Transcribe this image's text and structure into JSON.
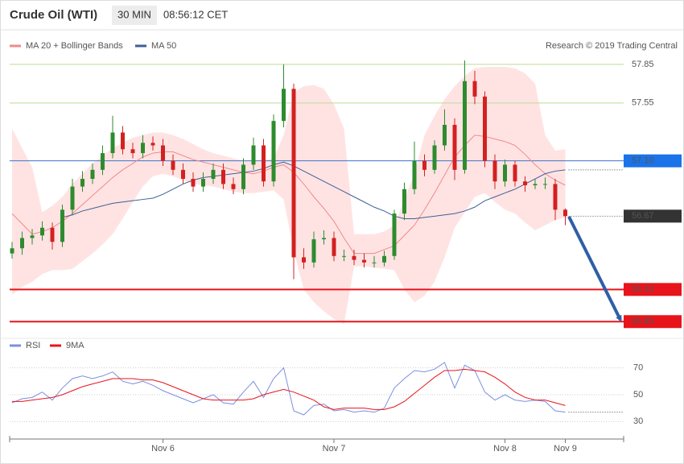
{
  "chart_data": [
    {
      "type": "candlestick",
      "title": "Crude Oil (WTI)",
      "interval": "30 MIN",
      "time": "08:56:12 CET",
      "source": "Research © 2019 Trading Central",
      "up_color": "#2e8b2e",
      "down_color": "#d42020",
      "ylim": [
        55.72,
        58.1
      ],
      "open": [
        56.38,
        56.42,
        56.5,
        56.52,
        56.58,
        56.47,
        56.72,
        56.9,
        56.96,
        57.03,
        57.16,
        57.32,
        57.19,
        57.16,
        57.24,
        57.22,
        57.1,
        57.03,
        56.96,
        56.9,
        56.96,
        57.03,
        56.92,
        56.88,
        57.07,
        57.22,
        56.94,
        57.41,
        57.66,
        56.35,
        56.31,
        56.49,
        56.5,
        56.36,
        56.36,
        56.33,
        56.31,
        56.31,
        56.36,
        56.69,
        56.88,
        57.1,
        57.03,
        57.22,
        57.38,
        57.03,
        57.72,
        57.6,
        57.1,
        56.94,
        57.07,
        56.94,
        56.91,
        56.92,
        56.92,
        56.72
      ],
      "high": [
        56.47,
        56.55,
        56.57,
        56.63,
        56.62,
        56.76,
        56.96,
        57.02,
        57.08,
        57.22,
        57.45,
        57.37,
        57.24,
        57.3,
        57.29,
        57.27,
        57.15,
        57.08,
        57.01,
        57.01,
        57.08,
        57.08,
        56.97,
        57.12,
        57.28,
        57.27,
        57.46,
        57.85,
        57.7,
        56.42,
        56.55,
        56.56,
        56.55,
        56.41,
        56.41,
        56.38,
        56.36,
        56.4,
        56.72,
        56.93,
        57.25,
        57.15,
        57.26,
        57.5,
        57.43,
        57.88,
        57.8,
        57.64,
        57.15,
        57.11,
        57.1,
        56.98,
        56.96,
        56.97,
        56.96,
        56.73
      ],
      "low": [
        56.34,
        56.37,
        56.45,
        56.48,
        56.41,
        56.43,
        56.68,
        56.86,
        56.92,
        56.99,
        57.12,
        57.15,
        57.12,
        57.12,
        57.18,
        57.06,
        56.99,
        56.92,
        56.86,
        56.86,
        56.92,
        56.88,
        56.84,
        56.84,
        57.03,
        56.9,
        56.9,
        57.36,
        56.18,
        56.26,
        56.27,
        56.45,
        56.32,
        56.32,
        56.29,
        56.27,
        56.27,
        56.28,
        56.33,
        56.64,
        56.84,
        56.98,
        57.0,
        57.18,
        56.95,
        57.0,
        57.54,
        57.05,
        56.88,
        56.9,
        56.9,
        56.86,
        56.88,
        56.88,
        56.64,
        56.6
      ],
      "close": [
        56.42,
        56.5,
        56.52,
        56.58,
        56.47,
        56.72,
        56.9,
        56.96,
        57.03,
        57.16,
        57.32,
        57.19,
        57.16,
        57.24,
        57.22,
        57.1,
        57.03,
        56.96,
        56.9,
        56.96,
        57.03,
        56.92,
        56.88,
        57.07,
        57.22,
        56.94,
        57.41,
        57.66,
        56.35,
        56.31,
        56.49,
        56.5,
        56.36,
        56.36,
        56.33,
        56.31,
        56.31,
        56.36,
        56.69,
        56.88,
        57.1,
        57.03,
        57.22,
        57.38,
        57.03,
        57.72,
        57.6,
        57.1,
        56.94,
        57.07,
        56.94,
        56.91,
        56.92,
        56.92,
        56.72,
        56.67
      ],
      "series": [
        {
          "name": "MA 20 + Bollinger Bands",
          "color": "#f08a8a",
          "band_color": "#ffe3e3",
          "values": [
            56.69,
            56.61,
            56.53,
            56.55,
            56.58,
            56.63,
            56.69,
            56.76,
            56.83,
            56.9,
            56.97,
            57.03,
            57.08,
            57.13,
            57.16,
            57.17,
            57.17,
            57.14,
            57.11,
            57.09,
            57.07,
            57.05,
            57.03,
            57.01,
            57.0,
            57.02,
            57.05,
            57.07,
            57.01,
            56.92,
            56.82,
            56.73,
            56.63,
            56.5,
            56.38,
            56.38,
            56.38,
            56.41,
            56.44,
            56.52,
            56.6,
            56.72,
            56.85,
            56.99,
            57.13,
            57.22,
            57.3,
            57.29,
            57.27,
            57.25,
            57.22,
            57.15,
            57.07,
            57.0,
            56.95,
            56.91
          ],
          "upper": [
            57.35,
            57.2,
            57.05,
            56.7,
            56.75,
            56.82,
            56.92,
            57.0,
            57.08,
            57.14,
            57.2,
            57.24,
            57.28,
            57.3,
            57.32,
            57.32,
            57.3,
            57.27,
            57.23,
            57.19,
            57.16,
            57.14,
            57.12,
            57.1,
            57.1,
            57.1,
            57.12,
            57.3,
            57.63,
            57.68,
            57.69,
            57.66,
            57.54,
            57.35,
            56.53,
            56.53,
            56.53,
            56.55,
            56.6,
            56.8,
            57.0,
            57.3,
            57.45,
            57.58,
            57.68,
            57.76,
            57.82,
            57.83,
            57.83,
            57.83,
            57.82,
            57.78,
            57.7,
            57.3,
            57.18,
            57.19
          ],
          "lower": [
            56.06,
            56.12,
            56.16,
            56.22,
            56.25,
            56.25,
            56.26,
            56.32,
            56.38,
            56.45,
            56.53,
            56.65,
            56.78,
            56.9,
            56.98,
            57.0,
            56.98,
            56.95,
            56.92,
            56.91,
            56.9,
            56.88,
            56.86,
            56.85,
            56.85,
            56.86,
            56.87,
            56.8,
            56.4,
            56.1,
            56.0,
            55.93,
            55.87,
            55.83,
            56.28,
            56.28,
            56.27,
            56.26,
            56.25,
            56.1,
            56.0,
            56.05,
            56.16,
            56.35,
            56.58,
            56.7,
            56.82,
            56.85,
            56.78,
            56.72,
            56.69,
            56.62,
            56.56,
            56.6,
            56.64,
            56.66
          ]
        },
        {
          "name": "MA 50",
          "color": "#3d5f97",
          "values": [
            null,
            null,
            null,
            null,
            null,
            56.66,
            56.68,
            56.71,
            56.73,
            56.75,
            56.77,
            56.78,
            56.79,
            56.8,
            56.81,
            56.84,
            56.88,
            56.92,
            56.95,
            56.97,
            56.98,
            56.99,
            57.0,
            57.01,
            57.02,
            57.04,
            57.07,
            57.09,
            57.06,
            57.02,
            56.98,
            56.94,
            56.9,
            56.86,
            56.82,
            56.78,
            56.74,
            56.71,
            56.67,
            56.65,
            56.65,
            56.66,
            56.67,
            56.68,
            56.69,
            56.71,
            56.74,
            56.79,
            56.82,
            56.85,
            56.88,
            56.92,
            56.96,
            57.0,
            57.02,
            57.03
          ]
        }
      ],
      "levels": [
        {
          "value": 57.85,
          "color": "#6aa84f",
          "line_color": "#b9dc98",
          "box": false,
          "dotted": false
        },
        {
          "value": 57.55,
          "color": "#6aa84f",
          "line_color": "#b9dc98",
          "box": false,
          "dotted": false
        },
        {
          "value": 57.1,
          "label": "57.10",
          "color": "#1a73e8",
          "line_color": "#3b73c9",
          "box": true,
          "dotted": false
        },
        {
          "value": 56.67,
          "color": "#333333",
          "line_color": "#555555",
          "box": true,
          "dotted": true
        },
        {
          "value": 56.1,
          "label": "56.10",
          "color": "#e8141b",
          "line_color": "#e8141b",
          "box": true,
          "dotted": false
        },
        {
          "value": 55.85,
          "color": "#e8141b",
          "line_color": "#e8141b",
          "box": true,
          "dotted": false
        }
      ]
    },
    {
      "type": "line",
      "ylim": [
        20,
        80
      ],
      "yticks": [
        30,
        50,
        70
      ],
      "categories": [
        null,
        null,
        null,
        null,
        null,
        null,
        null,
        null,
        null,
        null,
        null,
        null,
        null,
        null,
        null,
        "Nov 6",
        null,
        null,
        null,
        null,
        null,
        null,
        null,
        null,
        null,
        null,
        null,
        null,
        null,
        null,
        null,
        null,
        "Nov 7",
        null,
        null,
        null,
        null,
        null,
        null,
        null,
        null,
        null,
        null,
        null,
        null,
        null,
        null,
        null,
        null,
        "Nov 8",
        null,
        null,
        null,
        null,
        null,
        "Nov 9"
      ],
      "series": [
        {
          "name": "RSI",
          "color": "#7b8fe0",
          "values": [
            44,
            47,
            48,
            52,
            46,
            55,
            62,
            64,
            62,
            64,
            67,
            60,
            58,
            60,
            57,
            53,
            50,
            47,
            44,
            47,
            50,
            44,
            43,
            52,
            60,
            48,
            62,
            70,
            38,
            35,
            42,
            43,
            38,
            39,
            37,
            38,
            37,
            40,
            55,
            62,
            68,
            67,
            69,
            74,
            55,
            72,
            68,
            52,
            46,
            50,
            46,
            45,
            46,
            45,
            38,
            37
          ]
        },
        {
          "name": "9MA",
          "color": "#e8141b",
          "values": [
            45,
            45,
            46,
            47,
            48,
            50,
            53,
            56,
            58,
            60,
            62,
            62,
            62,
            61,
            61,
            59,
            56,
            53,
            50,
            47,
            46,
            46,
            46,
            46,
            47,
            50,
            52,
            54,
            52,
            49,
            46,
            41,
            39,
            40,
            40,
            40,
            39,
            39,
            41,
            45,
            51,
            57,
            63,
            68,
            68,
            69,
            68,
            67,
            63,
            58,
            52,
            48,
            46,
            46,
            44,
            42
          ]
        }
      ]
    }
  ]
}
